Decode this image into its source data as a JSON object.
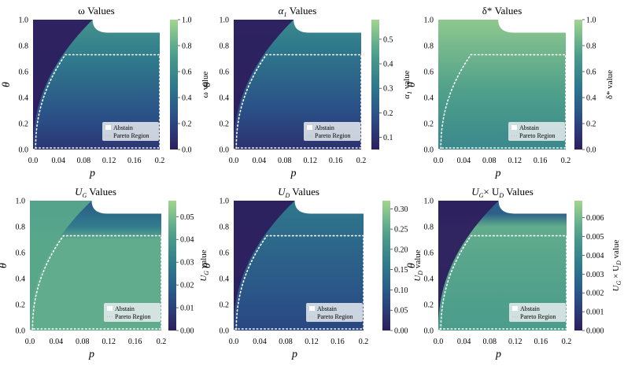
{
  "chart_data": [
    {
      "type": "heatmap",
      "title": "ω Values",
      "xlabel": "p",
      "ylabel": "θ",
      "colorbar_label": "ω value",
      "xlim": [
        0.0,
        0.2
      ],
      "ylim": [
        0.0,
        1.0
      ],
      "xticks": [
        "0.0",
        "0.04",
        "0.08",
        "0.12",
        "0.16",
        "0.2"
      ],
      "yticks": [
        "0.0",
        "0.2",
        "0.4",
        "0.6",
        "0.8",
        "1.0"
      ],
      "colorbar_ticks": [
        "0.0",
        "0.2",
        "0.4",
        "0.6",
        "0.8",
        "1.0"
      ],
      "vmin": 0.0,
      "vmax": 1.0,
      "field": "omega",
      "pareto_theta": 0.73,
      "legend": [
        "Abstain",
        "Pareto Region"
      ]
    },
    {
      "type": "heatmap",
      "title": "α",
      "title_sub": "1",
      "title_rest": " Values",
      "xlabel": "p",
      "ylabel": "θ",
      "colorbar_label": "α",
      "colorbar_label_sub": "1",
      "colorbar_label_rest": " value",
      "xlim": [
        0.0,
        0.2
      ],
      "ylim": [
        0.0,
        1.0
      ],
      "xticks": [
        "0.0",
        "0.04",
        "0.08",
        "0.12",
        "0.16",
        "0.2"
      ],
      "yticks": [
        "0.0",
        "0.2",
        "0.4",
        "0.6",
        "0.8",
        "1.0"
      ],
      "colorbar_ticks": [
        "0.1",
        "0.2",
        "0.3",
        "0.4",
        "0.5"
      ],
      "vmin": 0.05,
      "vmax": 0.58,
      "field": "alpha",
      "pareto_theta": 0.73,
      "legend": [
        "Abstain",
        "Pareto Region"
      ]
    },
    {
      "type": "heatmap",
      "title": "δ* Values",
      "xlabel": "p",
      "ylabel": "θ",
      "colorbar_label": "δ* value",
      "xlim": [
        0.0,
        0.2
      ],
      "ylim": [
        0.0,
        1.0
      ],
      "xticks": [
        "0.0",
        "0.04",
        "0.08",
        "0.12",
        "0.16",
        "0.2"
      ],
      "yticks": [
        "0.0",
        "0.2",
        "0.4",
        "0.6",
        "0.8",
        "1.0"
      ],
      "colorbar_ticks": [
        "0.0",
        "0.2",
        "0.4",
        "0.6",
        "0.8",
        "1.0"
      ],
      "vmin": 0.0,
      "vmax": 1.0,
      "field": "delta",
      "pareto_theta": 0.73,
      "legend": [
        "Abstain",
        "Pareto Region"
      ]
    },
    {
      "type": "heatmap",
      "title": "U",
      "title_sub": "G",
      "title_rest": " Values",
      "xlabel": "p",
      "ylabel": "θ",
      "colorbar_label": "U",
      "colorbar_label_sub": "G",
      "colorbar_label_rest": " value",
      "xlim": [
        0.0,
        0.2
      ],
      "ylim": [
        0.0,
        1.0
      ],
      "xticks": [
        "0.0",
        "0.04",
        "0.08",
        "0.12",
        "0.16",
        "0.2"
      ],
      "yticks": [
        "0.0",
        "0.2",
        "0.4",
        "0.6",
        "0.8",
        "1.0"
      ],
      "colorbar_ticks": [
        "0.00",
        "0.01",
        "0.02",
        "0.03",
        "0.04",
        "0.05"
      ],
      "vmin": 0.0,
      "vmax": 0.057,
      "field": "ug",
      "pareto_theta": 0.73,
      "legend": [
        "Abstain",
        "Pareto Region"
      ]
    },
    {
      "type": "heatmap",
      "title": "U",
      "title_sub": "D",
      "title_rest": " Values",
      "xlabel": "p",
      "ylabel": "θ",
      "colorbar_label": "U",
      "colorbar_label_sub": "D",
      "colorbar_label_rest": " value",
      "xlim": [
        0.0,
        0.2
      ],
      "ylim": [
        0.0,
        1.0
      ],
      "xticks": [
        "0.0",
        "0.04",
        "0.08",
        "0.12",
        "0.16",
        "0.2"
      ],
      "yticks": [
        "0.0",
        "0.2",
        "0.4",
        "0.6",
        "0.8",
        "1.0"
      ],
      "colorbar_ticks": [
        "0.00",
        "0.05",
        "0.10",
        "0.15",
        "0.20",
        "0.25",
        "0.30"
      ],
      "vmin": 0.0,
      "vmax": 0.32,
      "field": "ud",
      "pareto_theta": 0.73,
      "legend": [
        "Abstain",
        "Pareto Region"
      ]
    },
    {
      "type": "heatmap",
      "title": "U",
      "title_sub": "G",
      "title_rest": "× U",
      "title_sub2": "D",
      "title_rest2": " Values",
      "xlabel": "p",
      "ylabel": "θ",
      "colorbar_label": "U",
      "colorbar_label_sub": "G",
      "colorbar_label_rest": " × U",
      "colorbar_label_sub2": "D",
      "colorbar_label_rest2": " value",
      "xlim": [
        0.0,
        0.2
      ],
      "ylim": [
        0.0,
        1.0
      ],
      "xticks": [
        "0.0",
        "0.04",
        "0.08",
        "0.12",
        "0.16",
        "0.2"
      ],
      "yticks": [
        "0.0",
        "0.2",
        "0.4",
        "0.6",
        "0.8",
        "1.0"
      ],
      "colorbar_ticks": [
        "0.000",
        "0.001",
        "0.002",
        "0.003",
        "0.004",
        "0.005",
        "0.006"
      ],
      "vmin": 0.0,
      "vmax": 0.0069,
      "field": "prod",
      "pareto_theta": 0.73,
      "legend": [
        "Abstain",
        "Pareto Region"
      ]
    }
  ],
  "colors": {
    "cmap_low": "#2d1e5e",
    "cmap_mid1": "#2a4f87",
    "cmap_mid2": "#2f7a8c",
    "cmap_mid3": "#4fa08b",
    "cmap_high": "#a3d58f",
    "abstain": "#ffffff",
    "pareto": "#ffffff"
  }
}
